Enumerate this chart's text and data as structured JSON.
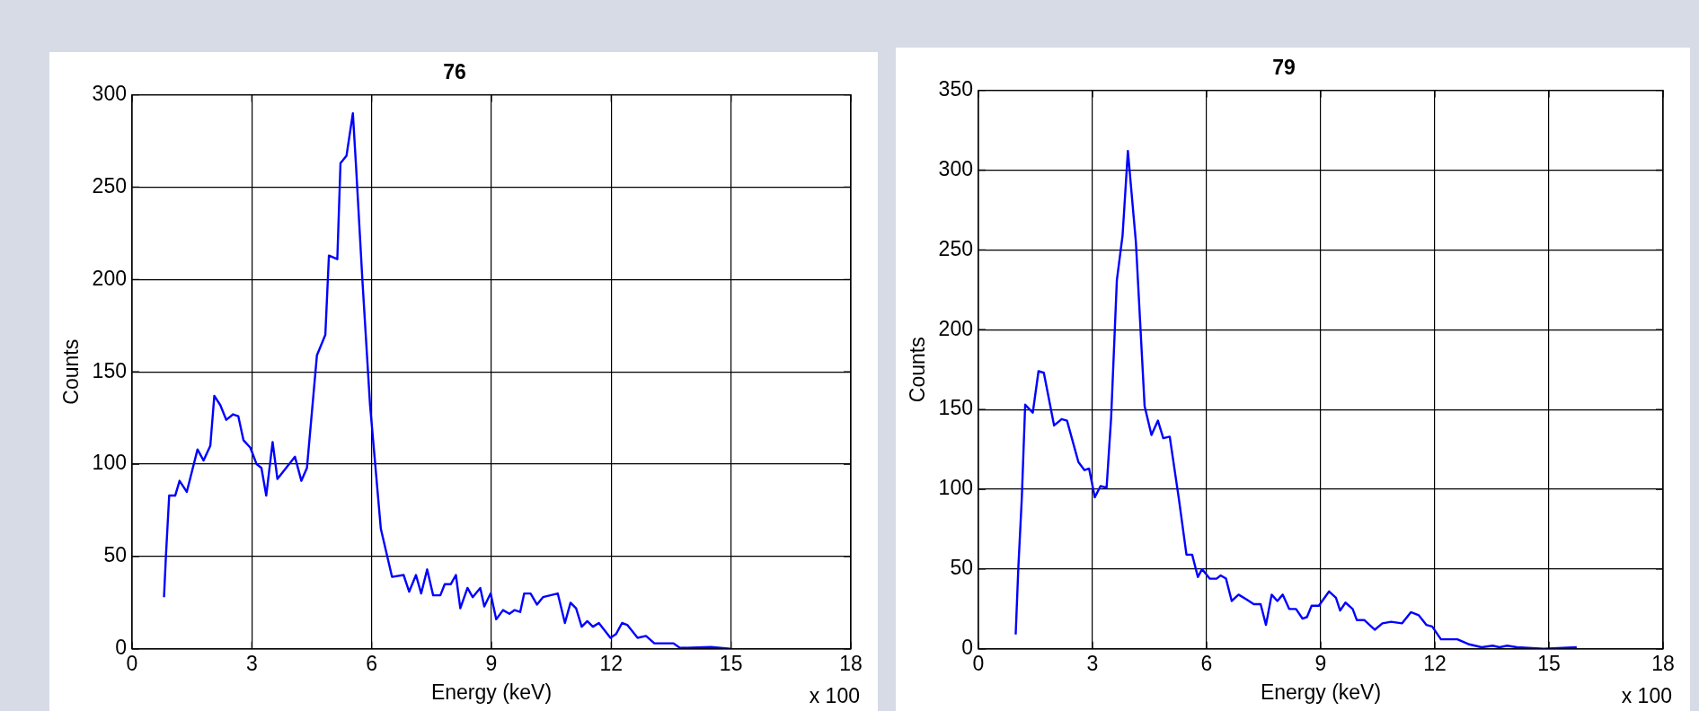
{
  "chart_data": [
    {
      "type": "line",
      "title": "76",
      "xlabel": "Energy (keV)",
      "ylabel": "Counts",
      "color": "#0000ff",
      "grid": true,
      "annotations": [
        "x 100"
      ],
      "xlim": [
        0,
        18
      ],
      "xticks": [
        0,
        3,
        6,
        9,
        12,
        15,
        18
      ],
      "ylim": [
        0,
        300
      ],
      "yticks": [
        0,
        50,
        100,
        150,
        200,
        250,
        300
      ],
      "x": [
        0.8,
        0.85,
        0.93,
        1.08,
        1.19,
        1.37,
        1.64,
        1.79,
        1.96,
        2.06,
        2.21,
        2.36,
        2.53,
        2.66,
        2.79,
        2.96,
        3.12,
        3.24,
        3.36,
        3.52,
        3.64,
        4.08,
        4.24,
        4.38,
        4.63,
        4.84,
        4.93,
        5.14,
        5.22,
        5.37,
        5.53,
        5.61,
        5.77,
        5.96,
        6.23,
        6.51,
        6.8,
        6.94,
        7.11,
        7.24,
        7.39,
        7.54,
        7.72,
        7.83,
        7.98,
        8.11,
        8.22,
        8.4,
        8.53,
        8.72,
        8.82,
        8.98,
        9.12,
        9.29,
        9.45,
        9.58,
        9.72,
        9.82,
        9.98,
        10.14,
        10.29,
        10.66,
        10.84,
        10.98,
        11.12,
        11.26,
        11.4,
        11.54,
        11.69,
        11.98,
        12.12,
        12.27,
        12.4,
        12.66,
        12.87,
        13.08,
        13.56,
        13.72,
        14.5,
        14.98
      ],
      "values": [
        28,
        51,
        83,
        83,
        91,
        85,
        108,
        102,
        110,
        137,
        132,
        124,
        127,
        126,
        113,
        109,
        100,
        98,
        83,
        112,
        92,
        104,
        91,
        98,
        159,
        170,
        213,
        211,
        263,
        267,
        290,
        261,
        199,
        132,
        65,
        39,
        40,
        31,
        40,
        30,
        43,
        29,
        29,
        35,
        35,
        40,
        22,
        33,
        28,
        33,
        23,
        30,
        16,
        21,
        19,
        21,
        20,
        30,
        30,
        24,
        28,
        30,
        14,
        25,
        22,
        12,
        15,
        12,
        14,
        6,
        8,
        14,
        13,
        6,
        7,
        3,
        3,
        0.5,
        1,
        0
      ]
    },
    {
      "type": "line",
      "title": "79",
      "xlabel": "Energy (keV)",
      "ylabel": "Counts",
      "color": "#0000ff",
      "grid": true,
      "annotations": [
        "x 100"
      ],
      "xlim": [
        0,
        18
      ],
      "xticks": [
        0,
        3,
        6,
        9,
        12,
        15,
        18
      ],
      "ylim": [
        0,
        350
      ],
      "yticks": [
        0,
        50,
        100,
        150,
        200,
        250,
        300,
        350
      ],
      "x": [
        0.98,
        1.05,
        1.14,
        1.23,
        1.43,
        1.58,
        1.72,
        1.99,
        2.19,
        2.33,
        2.63,
        2.79,
        2.91,
        3.06,
        3.21,
        3.37,
        3.49,
        3.64,
        3.79,
        3.93,
        4.14,
        4.37,
        4.55,
        4.72,
        4.86,
        5.03,
        5.27,
        5.47,
        5.62,
        5.77,
        5.88,
        6.08,
        6.26,
        6.37,
        6.51,
        6.66,
        6.84,
        7.05,
        7.24,
        7.42,
        7.56,
        7.71,
        7.86,
        8.0,
        8.17,
        8.35,
        8.52,
        8.64,
        8.76,
        8.95,
        9.22,
        9.4,
        9.51,
        9.65,
        9.84,
        9.95,
        10.15,
        10.42,
        10.62,
        10.85,
        11.14,
        11.37,
        11.58,
        11.78,
        11.93,
        12.16,
        12.59,
        12.88,
        13.23,
        13.52,
        13.7,
        13.9,
        14.16,
        14.86,
        15.73
      ],
      "values": [
        9,
        51,
        94,
        153,
        148,
        174,
        173,
        140,
        144,
        143,
        117,
        112,
        113,
        95,
        102,
        101,
        145,
        231,
        259,
        312,
        255,
        152,
        134,
        143,
        132,
        133,
        94,
        59,
        59,
        45,
        50,
        44,
        44,
        46,
        44,
        30,
        34,
        31,
        28,
        28,
        15,
        34,
        30,
        34,
        25,
        25,
        19,
        20,
        27,
        27,
        36,
        32,
        24,
        29,
        25,
        18,
        18,
        12,
        16,
        17,
        16,
        23,
        21,
        15,
        14,
        6,
        6,
        3,
        1,
        2,
        1,
        2,
        1,
        0,
        1
      ]
    }
  ]
}
